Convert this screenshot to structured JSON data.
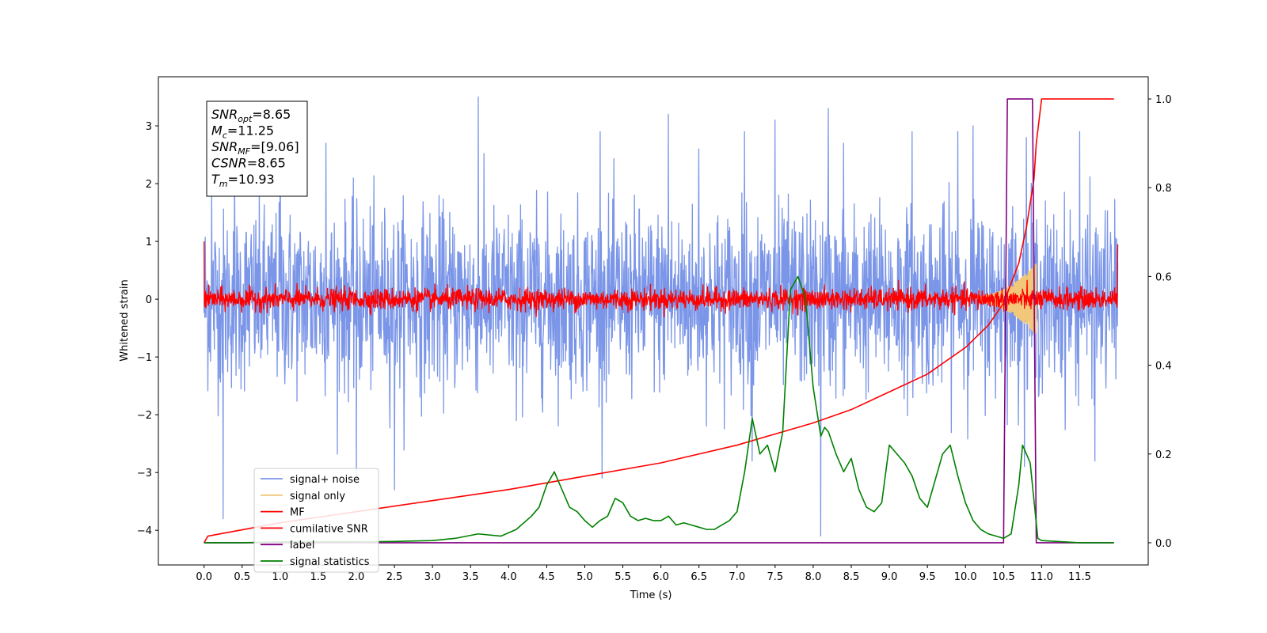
{
  "chart_data": {
    "type": "line",
    "xlabel": "Time (s)",
    "ylabel_left": "Whitened strain",
    "ylabel_right": "",
    "xlim": [
      -0.6,
      12.4
    ],
    "ylim_left": [
      -4.6,
      3.85
    ],
    "ylim_right": [
      -0.05,
      1.05
    ],
    "x_ticks": [
      "0.0",
      "0.5",
      "1.0",
      "1.5",
      "2.0",
      "2.5",
      "3.0",
      "3.5",
      "4.0",
      "4.5",
      "5.0",
      "5.5",
      "6.0",
      "6.5",
      "7.0",
      "7.5",
      "8.0",
      "8.5",
      "9.0",
      "9.5",
      "10.0",
      "10.5",
      "11.0",
      "11.5"
    ],
    "y_left_ticks": [
      "3",
      "2",
      "1",
      "0",
      "−1",
      "−2",
      "−3",
      "−4"
    ],
    "y_right_ticks": [
      "1.0",
      "0.8",
      "0.6",
      "0.4",
      "0.2",
      "0.0"
    ],
    "grid": false,
    "legend_position": "lower-left",
    "annotation": {
      "lines": [
        {
          "sym": "SNR",
          "sub": "opt",
          "val": "=8.65"
        },
        {
          "sym": "M",
          "sub": "c",
          "val": "=11.25"
        },
        {
          "sym": "SNR",
          "sub": "MF",
          "val": "=[9.06]"
        },
        {
          "sym": "CSNR",
          "sub": "",
          "val": "=8.65"
        },
        {
          "sym": "T",
          "sub": "m",
          "val": "=10.93"
        }
      ]
    },
    "series": [
      {
        "name": "signal+ noise",
        "axis": "left",
        "color": "#7b96e8",
        "kind": "noise",
        "x_range": [
          0.0,
          12.0
        ],
        "amplitude": 1.1,
        "peaks": [
          [
            0.1,
            1.95
          ],
          [
            0.25,
            -3.8
          ],
          [
            0.4,
            2.3
          ],
          [
            1.0,
            3.2
          ],
          [
            1.6,
            2.7
          ],
          [
            2.0,
            -3.2
          ],
          [
            2.5,
            -3.3
          ],
          [
            3.6,
            3.5
          ],
          [
            4.1,
            -2.1
          ],
          [
            5.2,
            2.9
          ],
          [
            6.1,
            3.2
          ],
          [
            6.5,
            2.6
          ],
          [
            7.1,
            2.9
          ],
          [
            7.2,
            -2.8
          ],
          [
            7.5,
            3.1
          ],
          [
            8.1,
            -4.1
          ],
          [
            8.2,
            3.3
          ],
          [
            8.4,
            2.7
          ],
          [
            9.3,
            2.9
          ],
          [
            9.9,
            2.9
          ],
          [
            10.1,
            3.0
          ],
          [
            10.8,
            2.8
          ],
          [
            11.5,
            2.9
          ],
          [
            11.7,
            -2.8
          ]
        ]
      },
      {
        "name": "signal only",
        "axis": "left",
        "color": "#f2c77a",
        "kind": "chirp",
        "x_start": 10.15,
        "x_end": 10.93,
        "amp_start": 0.05,
        "amp_end": 0.62
      },
      {
        "name": "MF",
        "axis": "left",
        "color": "#ff0000",
        "kind": "noise",
        "x_range": [
          0.0,
          12.0
        ],
        "amplitude": 0.13,
        "start_value": 1.0,
        "end_value": 0.95
      },
      {
        "name": "cumilative SNR",
        "axis": "right",
        "color": "#ff0000",
        "kind": "curve",
        "x": [
          0.0,
          0.05,
          1.0,
          2.0,
          3.0,
          4.0,
          5.0,
          6.0,
          7.0,
          7.5,
          8.0,
          8.5,
          9.0,
          9.5,
          10.0,
          10.3,
          10.5,
          10.7,
          10.8,
          10.9,
          10.93,
          11.0,
          11.95
        ],
        "y": [
          0.0,
          0.015,
          0.045,
          0.07,
          0.095,
          0.12,
          0.15,
          0.18,
          0.22,
          0.245,
          0.27,
          0.3,
          0.34,
          0.38,
          0.44,
          0.49,
          0.54,
          0.63,
          0.71,
          0.82,
          0.9,
          1.0,
          1.0
        ]
      },
      {
        "name": "label",
        "axis": "right",
        "color": "#800080",
        "kind": "curve",
        "x": [
          0.0,
          10.5,
          10.55,
          10.88,
          10.93,
          11.95
        ],
        "y": [
          0.0,
          0.0,
          1.0,
          1.0,
          0.0,
          0.0
        ]
      },
      {
        "name": "signal statistics",
        "axis": "right",
        "color": "#008000",
        "kind": "curve",
        "x": [
          0.0,
          0.5,
          1.0,
          1.5,
          2.0,
          2.5,
          3.0,
          3.3,
          3.6,
          3.9,
          4.1,
          4.3,
          4.4,
          4.5,
          4.6,
          4.7,
          4.8,
          4.9,
          5.0,
          5.1,
          5.2,
          5.3,
          5.4,
          5.5,
          5.6,
          5.7,
          5.8,
          5.9,
          6.0,
          6.1,
          6.2,
          6.3,
          6.4,
          6.5,
          6.6,
          6.7,
          6.8,
          6.9,
          7.0,
          7.1,
          7.2,
          7.3,
          7.4,
          7.5,
          7.6,
          7.7,
          7.8,
          7.9,
          8.0,
          8.1,
          8.15,
          8.2,
          8.3,
          8.4,
          8.5,
          8.6,
          8.7,
          8.8,
          8.9,
          9.0,
          9.1,
          9.2,
          9.3,
          9.4,
          9.5,
          9.6,
          9.7,
          9.8,
          9.9,
          10.0,
          10.1,
          10.2,
          10.3,
          10.4,
          10.5,
          10.6,
          10.7,
          10.75,
          10.85,
          10.95,
          11.0,
          11.5,
          11.95
        ],
        "y": [
          0.0,
          0.0,
          0.002,
          0.002,
          0.002,
          0.003,
          0.005,
          0.01,
          0.02,
          0.015,
          0.03,
          0.06,
          0.08,
          0.13,
          0.16,
          0.12,
          0.08,
          0.07,
          0.05,
          0.035,
          0.05,
          0.06,
          0.1,
          0.09,
          0.06,
          0.05,
          0.055,
          0.05,
          0.05,
          0.06,
          0.04,
          0.045,
          0.04,
          0.035,
          0.03,
          0.03,
          0.04,
          0.05,
          0.07,
          0.16,
          0.28,
          0.2,
          0.22,
          0.16,
          0.25,
          0.57,
          0.6,
          0.55,
          0.35,
          0.24,
          0.26,
          0.25,
          0.2,
          0.16,
          0.19,
          0.12,
          0.08,
          0.07,
          0.09,
          0.22,
          0.2,
          0.18,
          0.15,
          0.1,
          0.08,
          0.14,
          0.2,
          0.22,
          0.15,
          0.09,
          0.05,
          0.03,
          0.02,
          0.015,
          0.01,
          0.02,
          0.13,
          0.22,
          0.18,
          0.01,
          0.005,
          0.0,
          0.0
        ]
      }
    ]
  }
}
